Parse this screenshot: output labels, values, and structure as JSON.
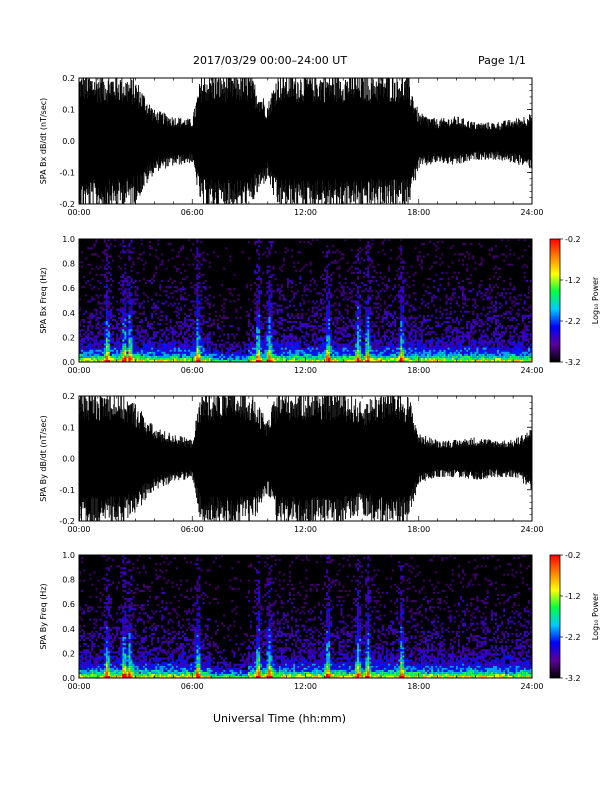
{
  "header": {
    "title": "2017/03/29  00:00–24:00 UT",
    "page": "Page 1/1"
  },
  "x_axis_label": "Universal Time (hh:mm)",
  "colorbar": {
    "title": "Log₁₀ Power",
    "tick_labels": [
      "-0.2",
      "-1.2",
      "-2.2",
      "-3.2"
    ],
    "range": [
      -3.2,
      -0.2
    ],
    "colors": [
      "#000000",
      "#5b0099",
      "#0000ff",
      "#00c8ff",
      "#00ff40",
      "#ffff00",
      "#ff8000",
      "#ff0000"
    ]
  },
  "chart_data": [
    {
      "type": "line",
      "title": "",
      "ylabel": "SPA Bx dB/dt (nT/sec)",
      "xlabel": "",
      "xlim": [
        "00:00",
        "24:00"
      ],
      "ylim": [
        -0.2,
        0.2
      ],
      "x_tick_labels": [
        "00:00",
        "06:00",
        "12:00",
        "18:00",
        "24:00"
      ],
      "y_tick_labels": [
        "0.2",
        "0.1",
        "0.0",
        "-0.1",
        "-0.2"
      ],
      "series_color": "#000000",
      "envelope": {
        "hours": [
          0,
          1,
          2,
          3,
          4,
          5,
          6,
          6.5,
          7,
          8,
          9,
          10,
          10.5,
          11,
          12,
          13,
          14,
          15,
          16,
          17,
          17.5,
          18,
          19,
          20,
          21,
          22,
          23,
          24
        ],
        "amplitude": [
          0.22,
          0.22,
          0.22,
          0.2,
          0.1,
          0.08,
          0.07,
          0.22,
          0.22,
          0.22,
          0.22,
          0.12,
          0.22,
          0.22,
          0.22,
          0.22,
          0.22,
          0.22,
          0.22,
          0.22,
          0.2,
          0.09,
          0.07,
          0.08,
          0.06,
          0.06,
          0.07,
          0.09
        ]
      }
    },
    {
      "type": "heatmap",
      "title": "",
      "ylabel": "SPA Bx Freq (Hz)",
      "xlabel": "",
      "xlim": [
        "00:00",
        "24:00"
      ],
      "ylim": [
        0.0,
        1.0
      ],
      "x_tick_labels": [
        "00:00",
        "06:00",
        "12:00",
        "18:00",
        "24:00"
      ],
      "y_tick_labels": [
        "1.0",
        "0.8",
        "0.6",
        "0.4",
        "0.2",
        "0.0"
      ],
      "value_range": [
        -3.2,
        -0.2
      ],
      "activity_bursts_hours": [
        1.5,
        2.4,
        2.7,
        6.3,
        9.5,
        10.1,
        13.2,
        14.8,
        15.3,
        17.1
      ],
      "low_freq_band_hz": [
        0.0,
        0.08
      ]
    },
    {
      "type": "line",
      "title": "",
      "ylabel": "SPA By dB/dt (nT/sec)",
      "xlabel": "",
      "xlim": [
        "00:00",
        "24:00"
      ],
      "ylim": [
        -0.2,
        0.2
      ],
      "x_tick_labels": [
        "00:00",
        "06:00",
        "12:00",
        "18:00",
        "24:00"
      ],
      "y_tick_labels": [
        "0.2",
        "0.1",
        "0.0",
        "-0.1",
        "-0.2"
      ],
      "series_color": "#000000",
      "envelope": {
        "hours": [
          0,
          1,
          2,
          3,
          4,
          5,
          6,
          6.5,
          7,
          8,
          9,
          10,
          10.5,
          11,
          12,
          13,
          14,
          15,
          16,
          17,
          17.5,
          18,
          19,
          20,
          21,
          22,
          23,
          24
        ],
        "amplitude": [
          0.22,
          0.22,
          0.22,
          0.18,
          0.1,
          0.08,
          0.06,
          0.22,
          0.22,
          0.22,
          0.22,
          0.12,
          0.22,
          0.22,
          0.22,
          0.22,
          0.22,
          0.18,
          0.22,
          0.22,
          0.2,
          0.08,
          0.06,
          0.06,
          0.07,
          0.06,
          0.06,
          0.1
        ]
      }
    },
    {
      "type": "heatmap",
      "title": "",
      "ylabel": "SPA By Freq (Hz)",
      "xlabel": "Universal Time (hh:mm)",
      "xlim": [
        "00:00",
        "24:00"
      ],
      "ylim": [
        0.0,
        1.0
      ],
      "x_tick_labels": [
        "00:00",
        "06:00",
        "12:00",
        "18:00",
        "24:00"
      ],
      "y_tick_labels": [
        "1.0",
        "0.8",
        "0.6",
        "0.4",
        "0.2",
        "0.0"
      ],
      "value_range": [
        -3.2,
        -0.2
      ],
      "activity_bursts_hours": [
        1.5,
        2.4,
        2.7,
        6.3,
        9.5,
        10.1,
        13.2,
        14.8,
        15.3,
        17.1
      ],
      "low_freq_band_hz": [
        0.0,
        0.08
      ]
    }
  ]
}
